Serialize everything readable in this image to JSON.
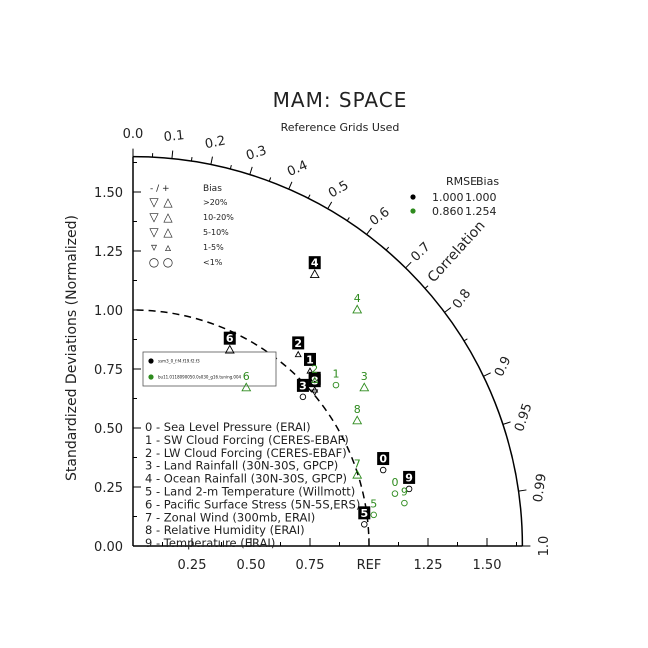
{
  "chart_data": {
    "type": "taylor-diagram",
    "title": "MAM: SPACE",
    "subtitle": "Reference Grids Used",
    "ylabel": "Standardized Deviations (Normalized)",
    "arc_label": "Correlation",
    "ref_label": "REF",
    "xlim": [
      0,
      1.65
    ],
    "ylim": [
      0,
      1.65
    ],
    "std_ticks": [
      "0.00",
      "0.25",
      "0.50",
      "0.75",
      "1.00",
      "1.25",
      "1.50"
    ],
    "x_ticks": [
      "0.25",
      "0.50",
      "0.75",
      "REF",
      "1.25",
      "1.50"
    ],
    "corr_ticks": [
      "0.0",
      "0.1",
      "0.2",
      "0.3",
      "0.4",
      "0.5",
      "0.6",
      "0.7",
      "0.8",
      "0.9",
      "0.95",
      "0.99",
      "1.0"
    ],
    "bias_key": {
      "header": "- / +",
      "bias_label": "Bias",
      "rows": [
        {
          "symbol_neg": "▽",
          "symbol_pos": "△",
          "label": ">20%"
        },
        {
          "symbol_neg": "▽",
          "symbol_pos": "△",
          "label": "10-20%"
        },
        {
          "symbol_neg": "▽",
          "symbol_pos": "△",
          "label": "5-10%"
        },
        {
          "symbol_neg": "▿",
          "symbol_pos": "▵",
          "label": "1-5%"
        },
        {
          "symbol_neg": "○",
          "symbol_pos": "○",
          "label": "<1%"
        }
      ]
    },
    "rmse_table": {
      "header_rmse": "RMSE",
      "header_bias": "Bias",
      "rows": [
        {
          "color": "#000000",
          "rmse": "1.000",
          "bias": "1.000"
        },
        {
          "color": "#2e8b1e",
          "rmse": "0.860",
          "bias": "1.254"
        }
      ]
    },
    "legend": {
      "placement": "left",
      "entries": [
        {
          "color": "#000000",
          "name": "ssm3_0_f.f4.f19.f2.f3"
        },
        {
          "color": "#2e8b1e",
          "name": "bu11.0118090050.0s030_g16.tuning.004"
        }
      ]
    },
    "variables": [
      "0 - Sea Level Pressure (ERAI)",
      "1 - SW Cloud Forcing (CERES-EBAF)",
      "2 - LW Cloud Forcing (CERES-EBAF)",
      "3 - Land Rainfall (30N-30S, GPCP)",
      "4 - Ocean Rainfall (30N-30S, GPCP)",
      "5 - Land 2-m Temperature (Willmott)",
      "6 - Pacific Surface Stress (5N-5S,ERS)",
      "7 - Zonal Wind (300mb, ERAI)",
      "8 - Relative Humidity (ERAI)",
      "9 - Temperature (ERAI)"
    ],
    "series": [
      {
        "color": "#000000",
        "points": [
          {
            "id": "0",
            "x": 1.06,
            "y": 0.36,
            "marker": "circle"
          },
          {
            "id": "1",
            "x": 0.75,
            "y": 0.78,
            "marker": "tri-up-small"
          },
          {
            "id": "2",
            "x": 0.7,
            "y": 0.85,
            "marker": "tri-up-small"
          },
          {
            "id": "3",
            "x": 0.72,
            "y": 0.67,
            "marker": "circle"
          },
          {
            "id": "4",
            "x": 0.77,
            "y": 1.19,
            "marker": "tri-up"
          },
          {
            "id": "5",
            "x": 0.98,
            "y": 0.13,
            "marker": "circle"
          },
          {
            "id": "6",
            "x": 0.41,
            "y": 0.87,
            "marker": "tri-up"
          },
          {
            "id": "7",
            "x": 0.77,
            "y": 0.7,
            "marker": "tri-up-small"
          },
          {
            "id": "8",
            "x": 0.77,
            "y": 0.69,
            "marker": "tri-down-small"
          },
          {
            "id": "9",
            "x": 1.17,
            "y": 0.28,
            "marker": "circle"
          }
        ]
      },
      {
        "color": "#2e8b1e",
        "points": [
          {
            "id": "0",
            "x": 1.11,
            "y": 0.26,
            "marker": "circle"
          },
          {
            "id": "1",
            "x": 0.86,
            "y": 0.72,
            "marker": "circle"
          },
          {
            "id": "2",
            "x": 0.77,
            "y": 0.74,
            "marker": "tri-up-small"
          },
          {
            "id": "3",
            "x": 0.98,
            "y": 0.71,
            "marker": "tri-up"
          },
          {
            "id": "4",
            "x": 0.95,
            "y": 1.04,
            "marker": "tri-up"
          },
          {
            "id": "5",
            "x": 1.02,
            "y": 0.17,
            "marker": "circle"
          },
          {
            "id": "6",
            "x": 0.48,
            "y": 0.71,
            "marker": "tri-up"
          },
          {
            "id": "7",
            "x": 0.95,
            "y": 0.34,
            "marker": "tri-up"
          },
          {
            "id": "8",
            "x": 0.95,
            "y": 0.57,
            "marker": "tri-up"
          },
          {
            "id": "9",
            "x": 1.15,
            "y": 0.22,
            "marker": "circle"
          }
        ]
      }
    ]
  }
}
